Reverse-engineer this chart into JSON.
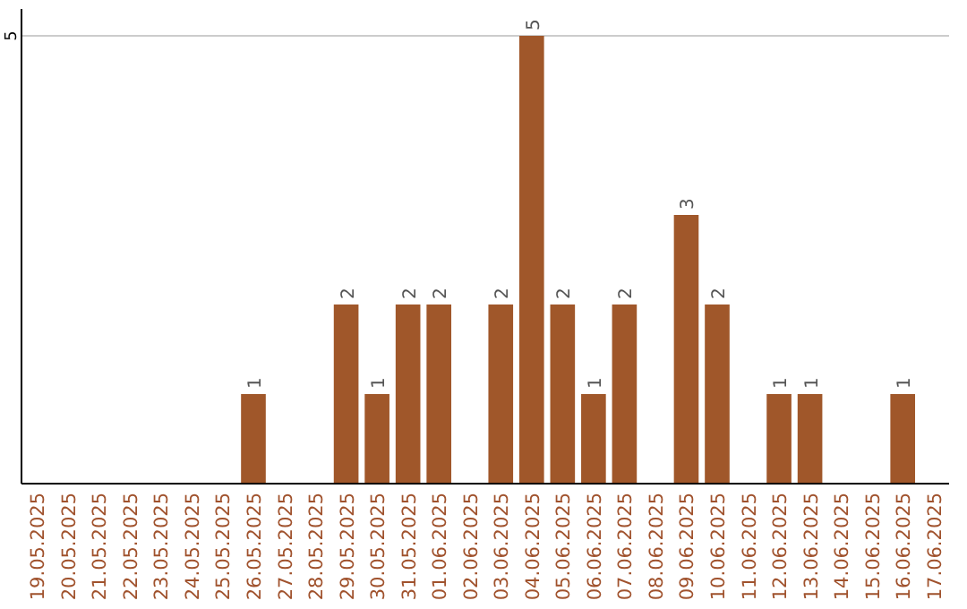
{
  "chart_data": {
    "type": "bar",
    "categories": [
      "19.05.2025",
      "20.05.2025",
      "21.05.2025",
      "22.05.2025",
      "23.05.2025",
      "24.05.2025",
      "25.05.2025",
      "26.05.2025",
      "27.05.2025",
      "28.05.2025",
      "29.05.2025",
      "30.05.2025",
      "31.05.2025",
      "01.06.2025",
      "02.06.2025",
      "03.06.2025",
      "04.06.2025",
      "05.06.2025",
      "06.06.2025",
      "07.06.2025",
      "08.06.2025",
      "09.06.2025",
      "10.06.2025",
      "11.06.2025",
      "12.06.2025",
      "13.06.2025",
      "14.06.2025",
      "15.06.2025",
      "16.06.2025",
      "17.06.2025"
    ],
    "values": [
      null,
      null,
      null,
      null,
      null,
      null,
      null,
      1,
      null,
      null,
      2,
      1,
      2,
      2,
      null,
      2,
      5,
      2,
      1,
      2,
      null,
      3,
      2,
      null,
      1,
      1,
      null,
      null,
      1,
      null
    ],
    "color": "#a0572a",
    "ylim": [
      0,
      5.3
    ],
    "yticks": [
      5
    ],
    "grid": "y",
    "data_labels": true
  }
}
